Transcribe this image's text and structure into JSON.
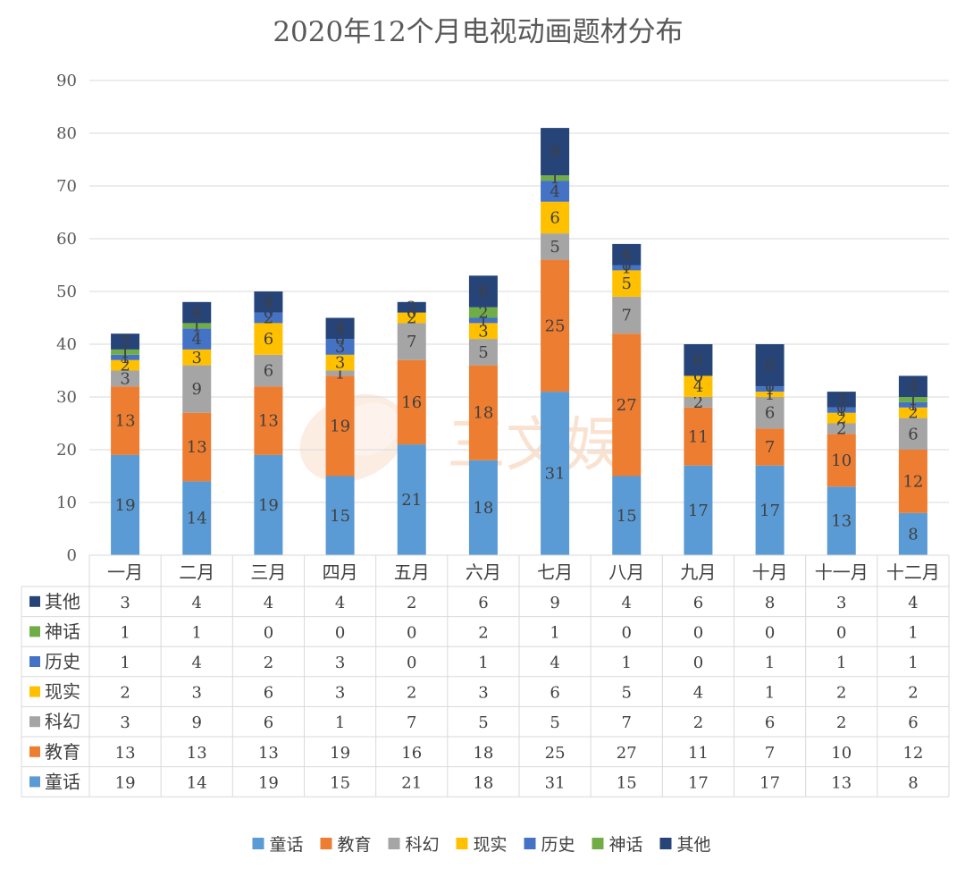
{
  "chart_data": {
    "type": "bar",
    "stacked": true,
    "title": "2020年12个月电视动画题材分布",
    "categories": [
      "一月",
      "二月",
      "三月",
      "四月",
      "五月",
      "六月",
      "七月",
      "八月",
      "九月",
      "十月",
      "十一月",
      "十二月"
    ],
    "ylim": [
      0,
      90
    ],
    "yticks": [
      0,
      10,
      20,
      30,
      40,
      50,
      60,
      70,
      80,
      90
    ],
    "grid": true,
    "legend_position": "bottom",
    "data_table": true,
    "series": [
      {
        "name": "童话",
        "color": "#5B9BD5",
        "values": [
          19,
          14,
          19,
          15,
          21,
          18,
          31,
          15,
          17,
          17,
          13,
          8
        ]
      },
      {
        "name": "教育",
        "color": "#ED7D31",
        "values": [
          13,
          13,
          13,
          19,
          16,
          18,
          25,
          27,
          11,
          7,
          10,
          12
        ]
      },
      {
        "name": "科幻",
        "color": "#A5A5A5",
        "values": [
          3,
          9,
          6,
          1,
          7,
          5,
          5,
          7,
          2,
          6,
          2,
          6
        ]
      },
      {
        "name": "现实",
        "color": "#FFC000",
        "values": [
          2,
          3,
          6,
          3,
          2,
          3,
          6,
          5,
          4,
          1,
          2,
          2
        ]
      },
      {
        "name": "历史",
        "color": "#4472C4",
        "values": [
          1,
          4,
          2,
          3,
          0,
          1,
          4,
          1,
          0,
          1,
          1,
          1
        ]
      },
      {
        "name": "神话",
        "color": "#70AD47",
        "values": [
          1,
          1,
          0,
          0,
          0,
          2,
          1,
          0,
          0,
          0,
          0,
          1
        ]
      },
      {
        "name": "其他",
        "color": "#264478",
        "values": [
          3,
          4,
          4,
          4,
          2,
          6,
          9,
          4,
          6,
          8,
          3,
          4
        ]
      }
    ],
    "watermark": "三文娱"
  }
}
